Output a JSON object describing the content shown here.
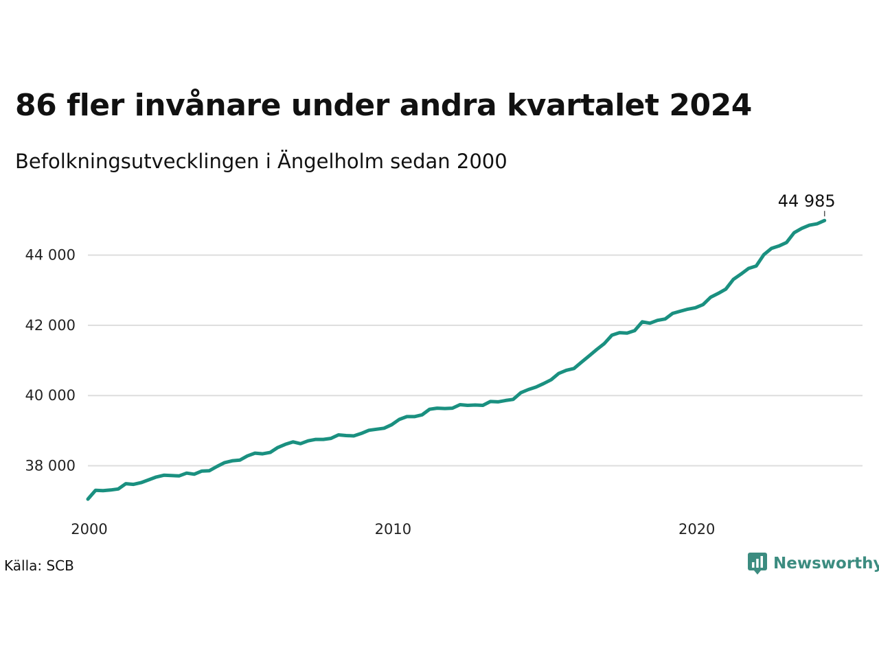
{
  "title": "86 fler invånare under andra kvartalet 2024",
  "subtitle": "Befolkningsutvecklingen i Ängelholm sedan 2000",
  "source": "Källa: SCB",
  "brand": {
    "name": "Newsworthy",
    "color": "#3c8c80",
    "icon": "newsworthy-logo-icon"
  },
  "chart_data": {
    "type": "line",
    "title": "86 fler invånare under andra kvartalet 2024",
    "subtitle": "Befolkningsutvecklingen i Ängelholm sedan 2000",
    "xlabel": "",
    "ylabel": "",
    "line_color": "#1a9080",
    "grid": true,
    "xlim": [
      2000,
      2025.5
    ],
    "ylim": [
      36700,
      45400
    ],
    "x_ticks": [
      {
        "value": 2000,
        "label": "2000"
      },
      {
        "value": 2010,
        "label": "2010"
      },
      {
        "value": 2020,
        "label": "2020"
      }
    ],
    "y_ticks": [
      {
        "value": 38000,
        "label": "38 000"
      },
      {
        "value": 40000,
        "label": "40 000"
      },
      {
        "value": 42000,
        "label": "42 000"
      },
      {
        "value": 44000,
        "label": "44 000"
      }
    ],
    "end_label": "44 985",
    "series": [
      {
        "x": [
          2000.0,
          2000.25,
          2000.5,
          2000.75,
          2001.0,
          2001.25,
          2001.5,
          2001.75,
          2002.0,
          2002.25,
          2002.5,
          2002.75,
          2003.0,
          2003.25,
          2003.5,
          2003.75,
          2004.0,
          2004.25,
          2004.5,
          2004.75,
          2005.0,
          2005.25,
          2005.5,
          2005.75,
          2006.0,
          2006.25,
          2006.5,
          2006.75,
          2007.0,
          2007.25,
          2007.5,
          2007.75,
          2008.0,
          2008.25,
          2008.5,
          2008.75,
          2009.0,
          2009.25,
          2009.5,
          2009.75,
          2010.0,
          2010.25,
          2010.5,
          2010.75,
          2011.0,
          2011.25,
          2011.5,
          2011.75,
          2012.0,
          2012.25,
          2012.5,
          2012.75,
          2013.0,
          2013.25,
          2013.5,
          2013.75,
          2014.0,
          2014.25,
          2014.5,
          2014.75,
          2015.0,
          2015.25,
          2015.5,
          2015.75,
          2016.0,
          2016.25,
          2016.5,
          2016.75,
          2017.0,
          2017.25,
          2017.5,
          2017.75,
          2018.0,
          2018.25,
          2018.5,
          2018.75,
          2019.0,
          2019.25,
          2019.5,
          2019.75,
          2020.0,
          2020.25,
          2020.5,
          2020.75,
          2021.0,
          2021.25,
          2021.5,
          2021.75,
          2022.0,
          2022.25,
          2022.5,
          2022.75,
          2023.0,
          2023.25,
          2023.5,
          2023.75,
          2024.0,
          2024.25
        ],
        "y": [
          37050,
          37300,
          37290,
          37310,
          37340,
          37490,
          37470,
          37520,
          37600,
          37680,
          37730,
          37720,
          37710,
          37790,
          37760,
          37850,
          37860,
          37980,
          38090,
          38140,
          38160,
          38280,
          38360,
          38340,
          38380,
          38520,
          38610,
          38680,
          38630,
          38710,
          38750,
          38750,
          38780,
          38880,
          38860,
          38850,
          38920,
          39010,
          39040,
          39070,
          39170,
          39320,
          39400,
          39400,
          39450,
          39610,
          39640,
          39630,
          39640,
          39740,
          39720,
          39730,
          39720,
          39830,
          39820,
          39860,
          39890,
          40080,
          40170,
          40240,
          40340,
          40450,
          40630,
          40720,
          40770,
          40950,
          41130,
          41310,
          41480,
          41720,
          41790,
          41780,
          41850,
          42100,
          42060,
          42140,
          42180,
          42340,
          42400,
          42460,
          42500,
          42590,
          42800,
          42910,
          43030,
          43310,
          43460,
          43620,
          43690,
          44010,
          44190,
          44260,
          44360,
          44640,
          44760,
          44850,
          44890,
          44985
        ]
      }
    ]
  }
}
